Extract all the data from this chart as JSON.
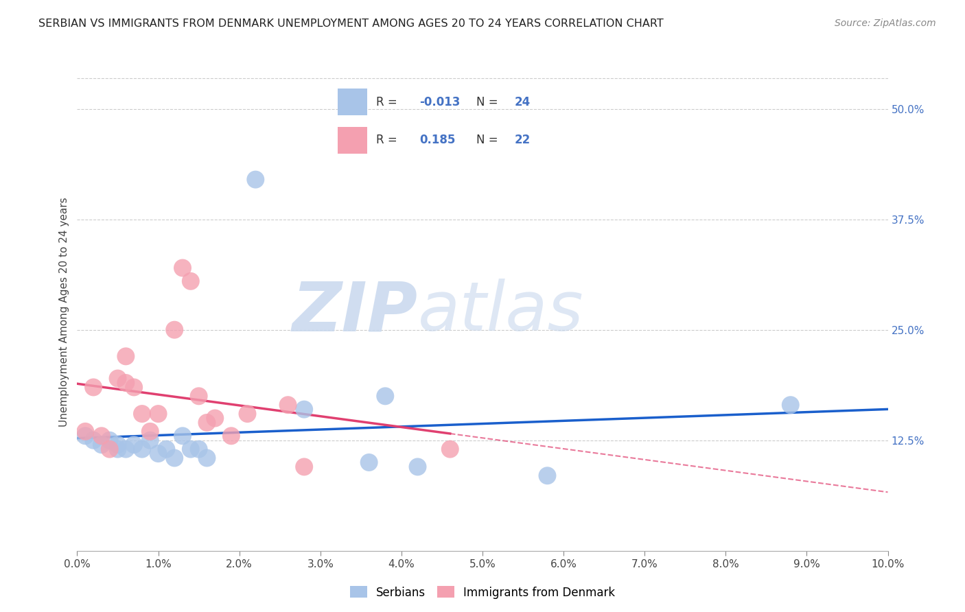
{
  "title": "SERBIAN VS IMMIGRANTS FROM DENMARK UNEMPLOYMENT AMONG AGES 20 TO 24 YEARS CORRELATION CHART",
  "source": "Source: ZipAtlas.com",
  "ylabel": "Unemployment Among Ages 20 to 24 years",
  "right_yticks": [
    0.125,
    0.25,
    0.375,
    0.5
  ],
  "right_yticklabels": [
    "12.5%",
    "25.0%",
    "37.5%",
    "50.0%"
  ],
  "xmin": 0.0,
  "xmax": 0.1,
  "ymin": 0.0,
  "ymax": 0.54,
  "serbian_R": -0.013,
  "serbian_N": 24,
  "denmark_R": 0.185,
  "denmark_N": 22,
  "serbian_color": "#a8c4e8",
  "denmark_color": "#f4a0b0",
  "serbian_line_color": "#1a5fcc",
  "denmark_line_color": "#e04070",
  "watermark_zip": "ZIP",
  "watermark_atlas": "atlas",
  "legend_labels": [
    "Serbians",
    "Immigrants from Denmark"
  ],
  "legend_R_color": "#4472c4",
  "legend_text_color": "#333333",
  "serbian_x": [
    0.001,
    0.002,
    0.003,
    0.004,
    0.005,
    0.005,
    0.006,
    0.007,
    0.008,
    0.009,
    0.01,
    0.011,
    0.012,
    0.013,
    0.014,
    0.015,
    0.016,
    0.022,
    0.028,
    0.036,
    0.038,
    0.042,
    0.058,
    0.088
  ],
  "serbian_y": [
    0.13,
    0.125,
    0.12,
    0.125,
    0.12,
    0.115,
    0.115,
    0.12,
    0.115,
    0.125,
    0.11,
    0.115,
    0.105,
    0.13,
    0.115,
    0.115,
    0.105,
    0.42,
    0.16,
    0.1,
    0.175,
    0.095,
    0.085,
    0.165
  ],
  "denmark_x": [
    0.001,
    0.002,
    0.003,
    0.004,
    0.005,
    0.006,
    0.006,
    0.007,
    0.008,
    0.009,
    0.01,
    0.012,
    0.013,
    0.014,
    0.015,
    0.016,
    0.017,
    0.019,
    0.021,
    0.026,
    0.028,
    0.046
  ],
  "denmark_y": [
    0.135,
    0.185,
    0.13,
    0.115,
    0.195,
    0.22,
    0.19,
    0.185,
    0.155,
    0.135,
    0.155,
    0.25,
    0.32,
    0.305,
    0.175,
    0.145,
    0.15,
    0.13,
    0.155,
    0.165,
    0.095,
    0.115
  ],
  "xtick_count": 11,
  "grid_color": "#cccccc",
  "grid_style": "--"
}
